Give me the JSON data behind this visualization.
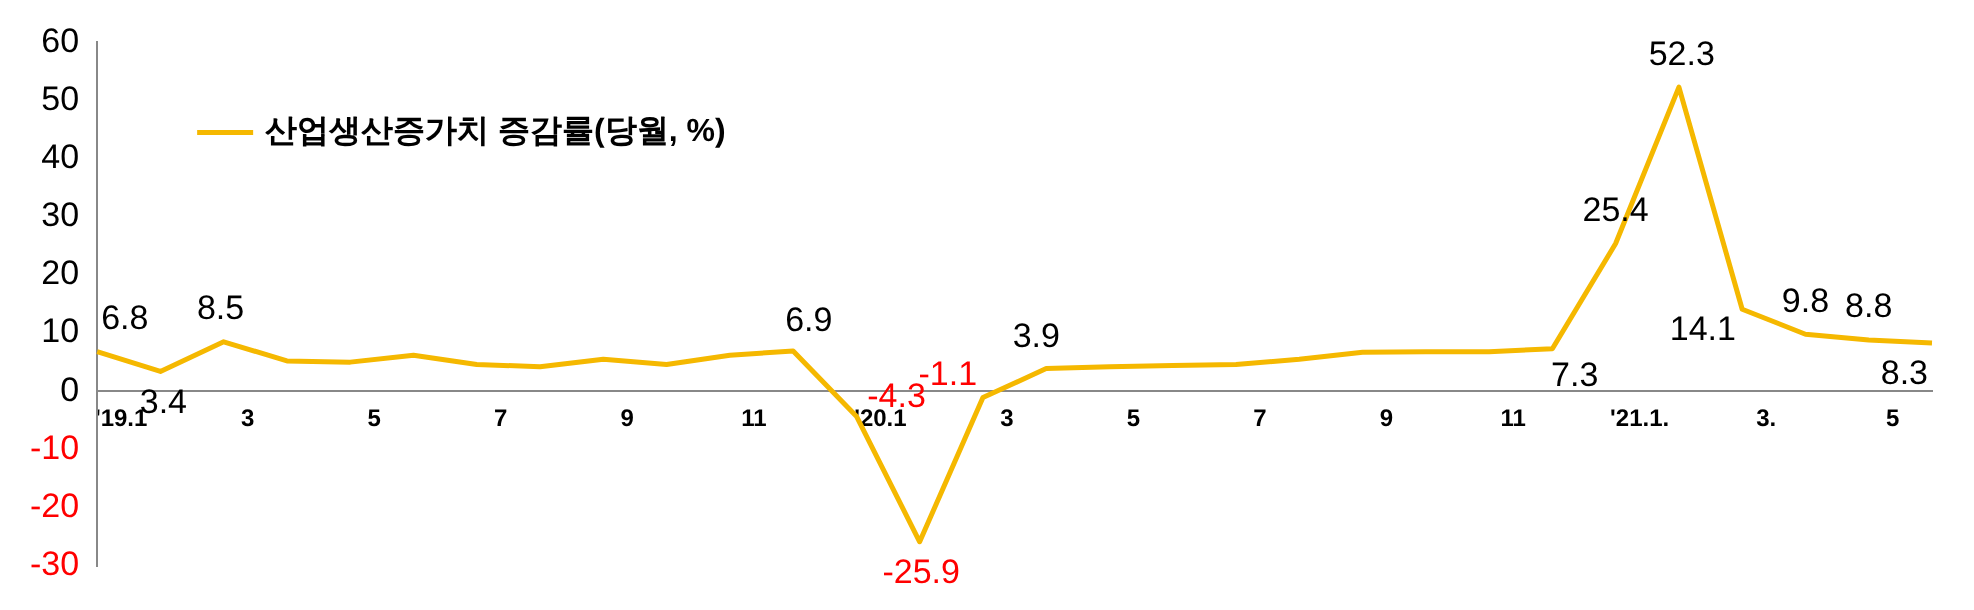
{
  "chart_data": {
    "type": "line",
    "categories": [
      "'19.1",
      null,
      "3",
      null,
      "5",
      null,
      "7",
      null,
      "9",
      null,
      "11",
      null,
      "'20.1",
      null,
      "3",
      null,
      "5",
      null,
      "7",
      null,
      "9",
      null,
      "11",
      null,
      "'21.1.",
      null,
      "3.",
      null,
      "5",
      null
    ],
    "series": [
      {
        "name": "산업생산증가치 증감률(당월, %)",
        "color": "#f5b800",
        "values": [
          6.8,
          3.4,
          8.5,
          5.2,
          5.0,
          6.2,
          4.6,
          4.2,
          5.5,
          4.6,
          6.2,
          6.9,
          -4.3,
          -25.9,
          -1.1,
          3.9,
          4.2,
          4.4,
          4.6,
          5.5,
          6.7,
          6.8,
          6.8,
          7.3,
          25.4,
          52.3,
          14.1,
          9.8,
          8.8,
          8.3
        ],
        "value_labels": [
          "6.8",
          "3.4",
          "8.5",
          null,
          null,
          null,
          null,
          null,
          null,
          null,
          null,
          "6.9",
          "-4.3",
          "-25.9",
          "-1.1",
          "3.9",
          null,
          null,
          null,
          null,
          null,
          null,
          null,
          "7.3",
          "25.4",
          "52.3",
          "14.1",
          "9.8",
          "8.8",
          "8.3"
        ]
      }
    ],
    "ylim": [
      -30,
      60
    ],
    "yticks": [
      -30,
      -20,
      -10,
      0,
      10,
      20,
      30,
      40,
      50,
      60
    ],
    "grid": false,
    "legend": "top left",
    "marker": "none",
    "line_style": "solid"
  }
}
